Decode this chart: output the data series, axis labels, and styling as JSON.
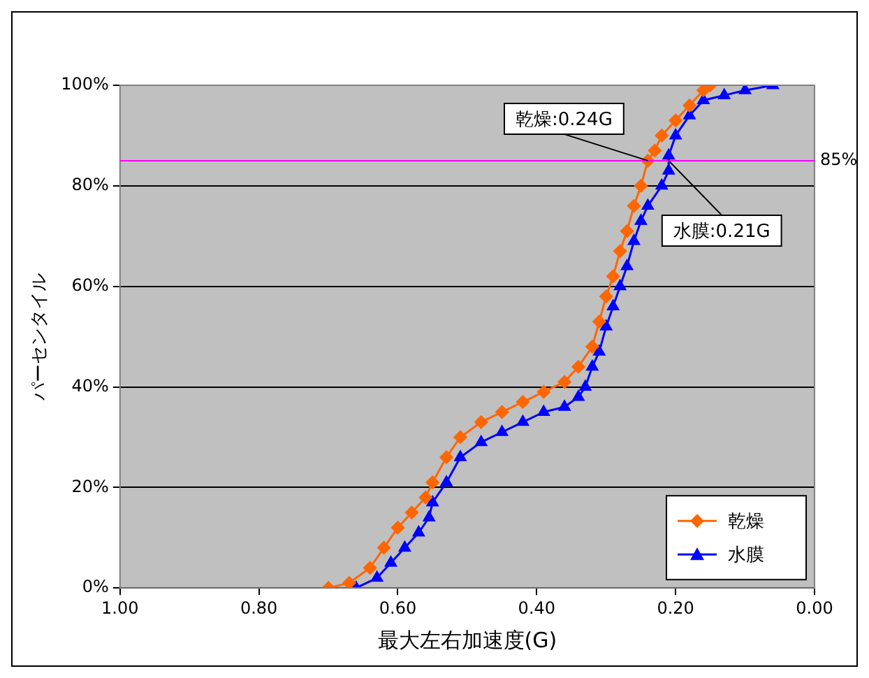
{
  "chart_data": {
    "type": "line",
    "xlabel": "最大左右加速度(G)",
    "ylabel": "パーセンタイル",
    "xlim": [
      1,
      0
    ],
    "xticks": [
      {
        "value": 1,
        "label": "1.00"
      },
      {
        "value": 0.8,
        "label": "0.80"
      },
      {
        "value": 0.6,
        "label": "0.60"
      },
      {
        "value": 0.4,
        "label": "0.40"
      },
      {
        "value": 0.2,
        "label": "0.20"
      },
      {
        "value": 0,
        "label": "0.00"
      }
    ],
    "ylim": [
      0,
      100
    ],
    "yticks": [
      {
        "value": 0,
        "label": "0%"
      },
      {
        "value": 20,
        "label": "20%"
      },
      {
        "value": 40,
        "label": "40%"
      },
      {
        "value": 60,
        "label": "60%"
      },
      {
        "value": 80,
        "label": "80%"
      },
      {
        "value": 100,
        "label": "100%"
      }
    ],
    "grid": "y",
    "legend": "bottom right",
    "line_style": "solid",
    "series": [
      {
        "name": "乾燥",
        "color": "#ff6600",
        "marker": "diamond",
        "x": [
          0.7,
          0.67,
          0.64,
          0.62,
          0.6,
          0.58,
          0.56,
          0.55,
          0.53,
          0.51,
          0.48,
          0.45,
          0.42,
          0.39,
          0.36,
          0.34,
          0.32,
          0.31,
          0.3,
          0.29,
          0.28,
          0.27,
          0.26,
          0.25,
          0.24,
          0.23,
          0.22,
          0.2,
          0.18,
          0.16,
          0.15
        ],
        "values": [
          0,
          1,
          4,
          8,
          12,
          15,
          18,
          21,
          26,
          30,
          33,
          35,
          37,
          39,
          41,
          44,
          48,
          53,
          58,
          62,
          67,
          71,
          76,
          80,
          85,
          87,
          90,
          93,
          96,
          99,
          100
        ]
      },
      {
        "name": "水膜",
        "color": "#0000ff",
        "marker": "triangle",
        "x": [
          0.66,
          0.63,
          0.61,
          0.59,
          0.57,
          0.555,
          0.55,
          0.53,
          0.51,
          0.48,
          0.45,
          0.42,
          0.39,
          0.36,
          0.34,
          0.33,
          0.32,
          0.31,
          0.3,
          0.29,
          0.28,
          0.27,
          0.26,
          0.25,
          0.24,
          0.22,
          0.21,
          0.21,
          0.2,
          0.18,
          0.16,
          0.13,
          0.1,
          0.06
        ],
        "values": [
          0,
          2,
          5,
          8,
          11,
          14,
          17,
          21,
          26,
          29,
          31,
          33,
          35,
          36,
          38,
          40,
          44,
          47,
          52,
          56,
          60,
          64,
          69,
          73,
          76,
          80,
          83,
          86,
          90,
          94,
          97,
          98,
          99,
          100
        ]
      }
    ],
    "ref_lines": [
      {
        "axis": "y",
        "value": 85,
        "label": "85%",
        "color": "#ff00ff"
      }
    ],
    "annotations": [
      {
        "text": "乾燥:0.24G",
        "x": 0.24,
        "y": 85
      },
      {
        "text": "水膜:0.21G",
        "x": 0.21,
        "y": 85
      }
    ]
  }
}
